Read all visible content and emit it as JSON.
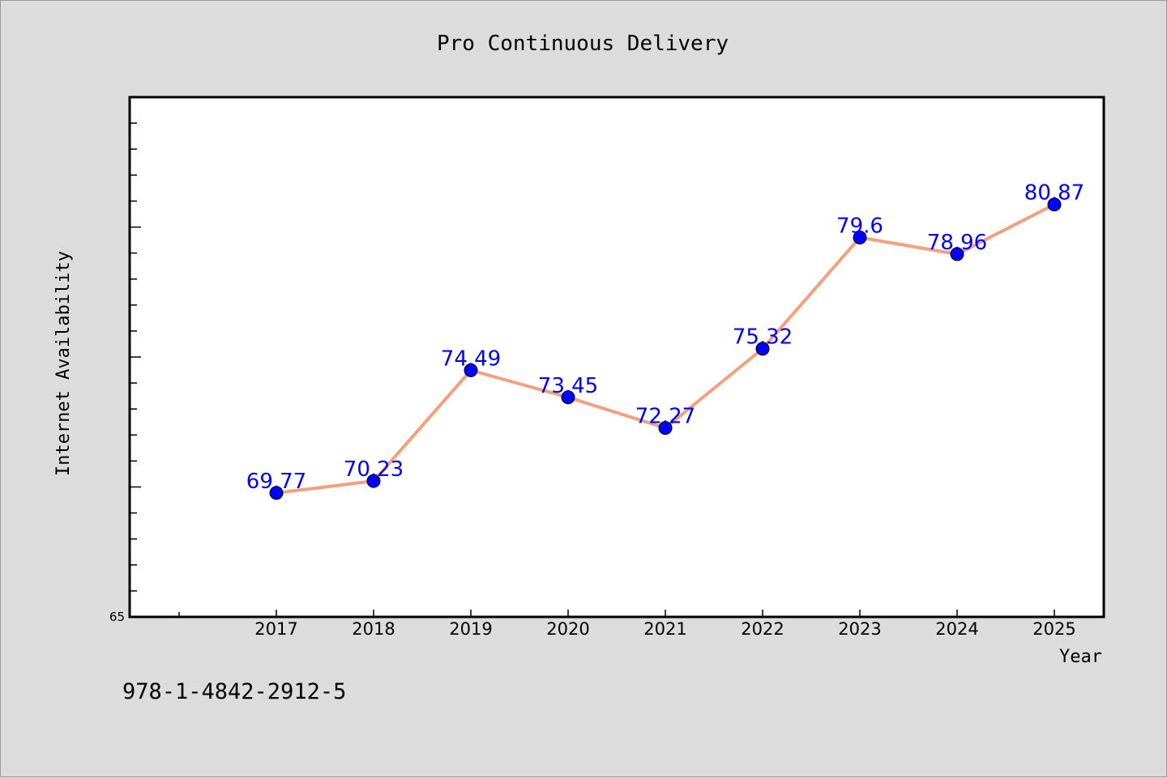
{
  "chart_data": {
    "type": "line",
    "title": "Pro Continuous Delivery",
    "xlabel": "Year",
    "ylabel": "Internet Availability",
    "categories": [
      "2017",
      "2018",
      "2019",
      "2020",
      "2021",
      "2022",
      "2023",
      "2024",
      "2025"
    ],
    "series": [
      {
        "values": [
          69.77,
          70.23,
          74.49,
          73.45,
          72.27,
          75.32,
          79.6,
          78.96,
          80.87
        ],
        "labels": [
          "69.77",
          "70.23",
          "74.49",
          "73.45",
          "72.27",
          "75.32",
          "79.6",
          "78.96",
          "80.87"
        ]
      }
    ],
    "ylim": [
      65,
      85
    ],
    "y_tick_labels": [
      "65"
    ],
    "grid": false,
    "colors": {
      "line": "#f4a07e",
      "marker": "#0000ff",
      "data_label": "#0000ff",
      "background": "#dcdcdc",
      "plot_background": "#ffffff"
    }
  },
  "footer": {
    "code": "978-1-4842-2912-5"
  }
}
